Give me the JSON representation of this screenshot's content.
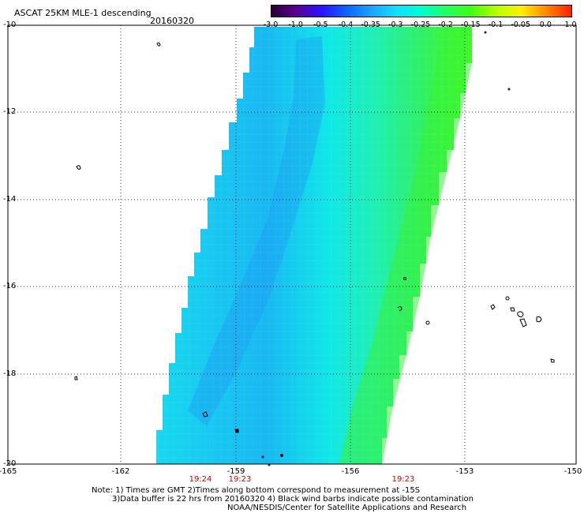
{
  "title": "ASCAT 25KM MLE-1 descending",
  "date": "20160320",
  "colorbar": {
    "labels": [
      "-3.0",
      "-1.0",
      "-0.5",
      "-0.4",
      "-0.35",
      "-0.3",
      "-0.25",
      "-0.2",
      "-0.15",
      "-0.1",
      "-0.05",
      "0.0",
      "1.0"
    ],
    "colors": [
      "#2a0030",
      "#5a0094",
      "#2a10ff",
      "#0a64ff",
      "#1aa4ff",
      "#10e0ff",
      "#00ffd0",
      "#22ff60",
      "#40ff10",
      "#b8ff00",
      "#fff000",
      "#ff8800",
      "#ff2000"
    ]
  },
  "map": {
    "lat_labels": [
      "-10",
      "-12",
      "-14",
      "-16",
      "-18",
      "-20"
    ],
    "lon_labels": [
      "-165",
      "-162",
      "-159",
      "-156",
      "-153",
      "-150"
    ],
    "time_labels": [
      "19:24",
      "19:23",
      "19:23"
    ]
  },
  "notes": {
    "line1": "Note: 1) Times are GMT 2)Times along bottom correspond to measurement at -15S",
    "line2": "3)Data buffer is 22 hrs from 20160320 4) Black wind barbs indicate possible contamination",
    "line3": "NOAA/NESDIS/Center for Satellite Applications and Research"
  }
}
